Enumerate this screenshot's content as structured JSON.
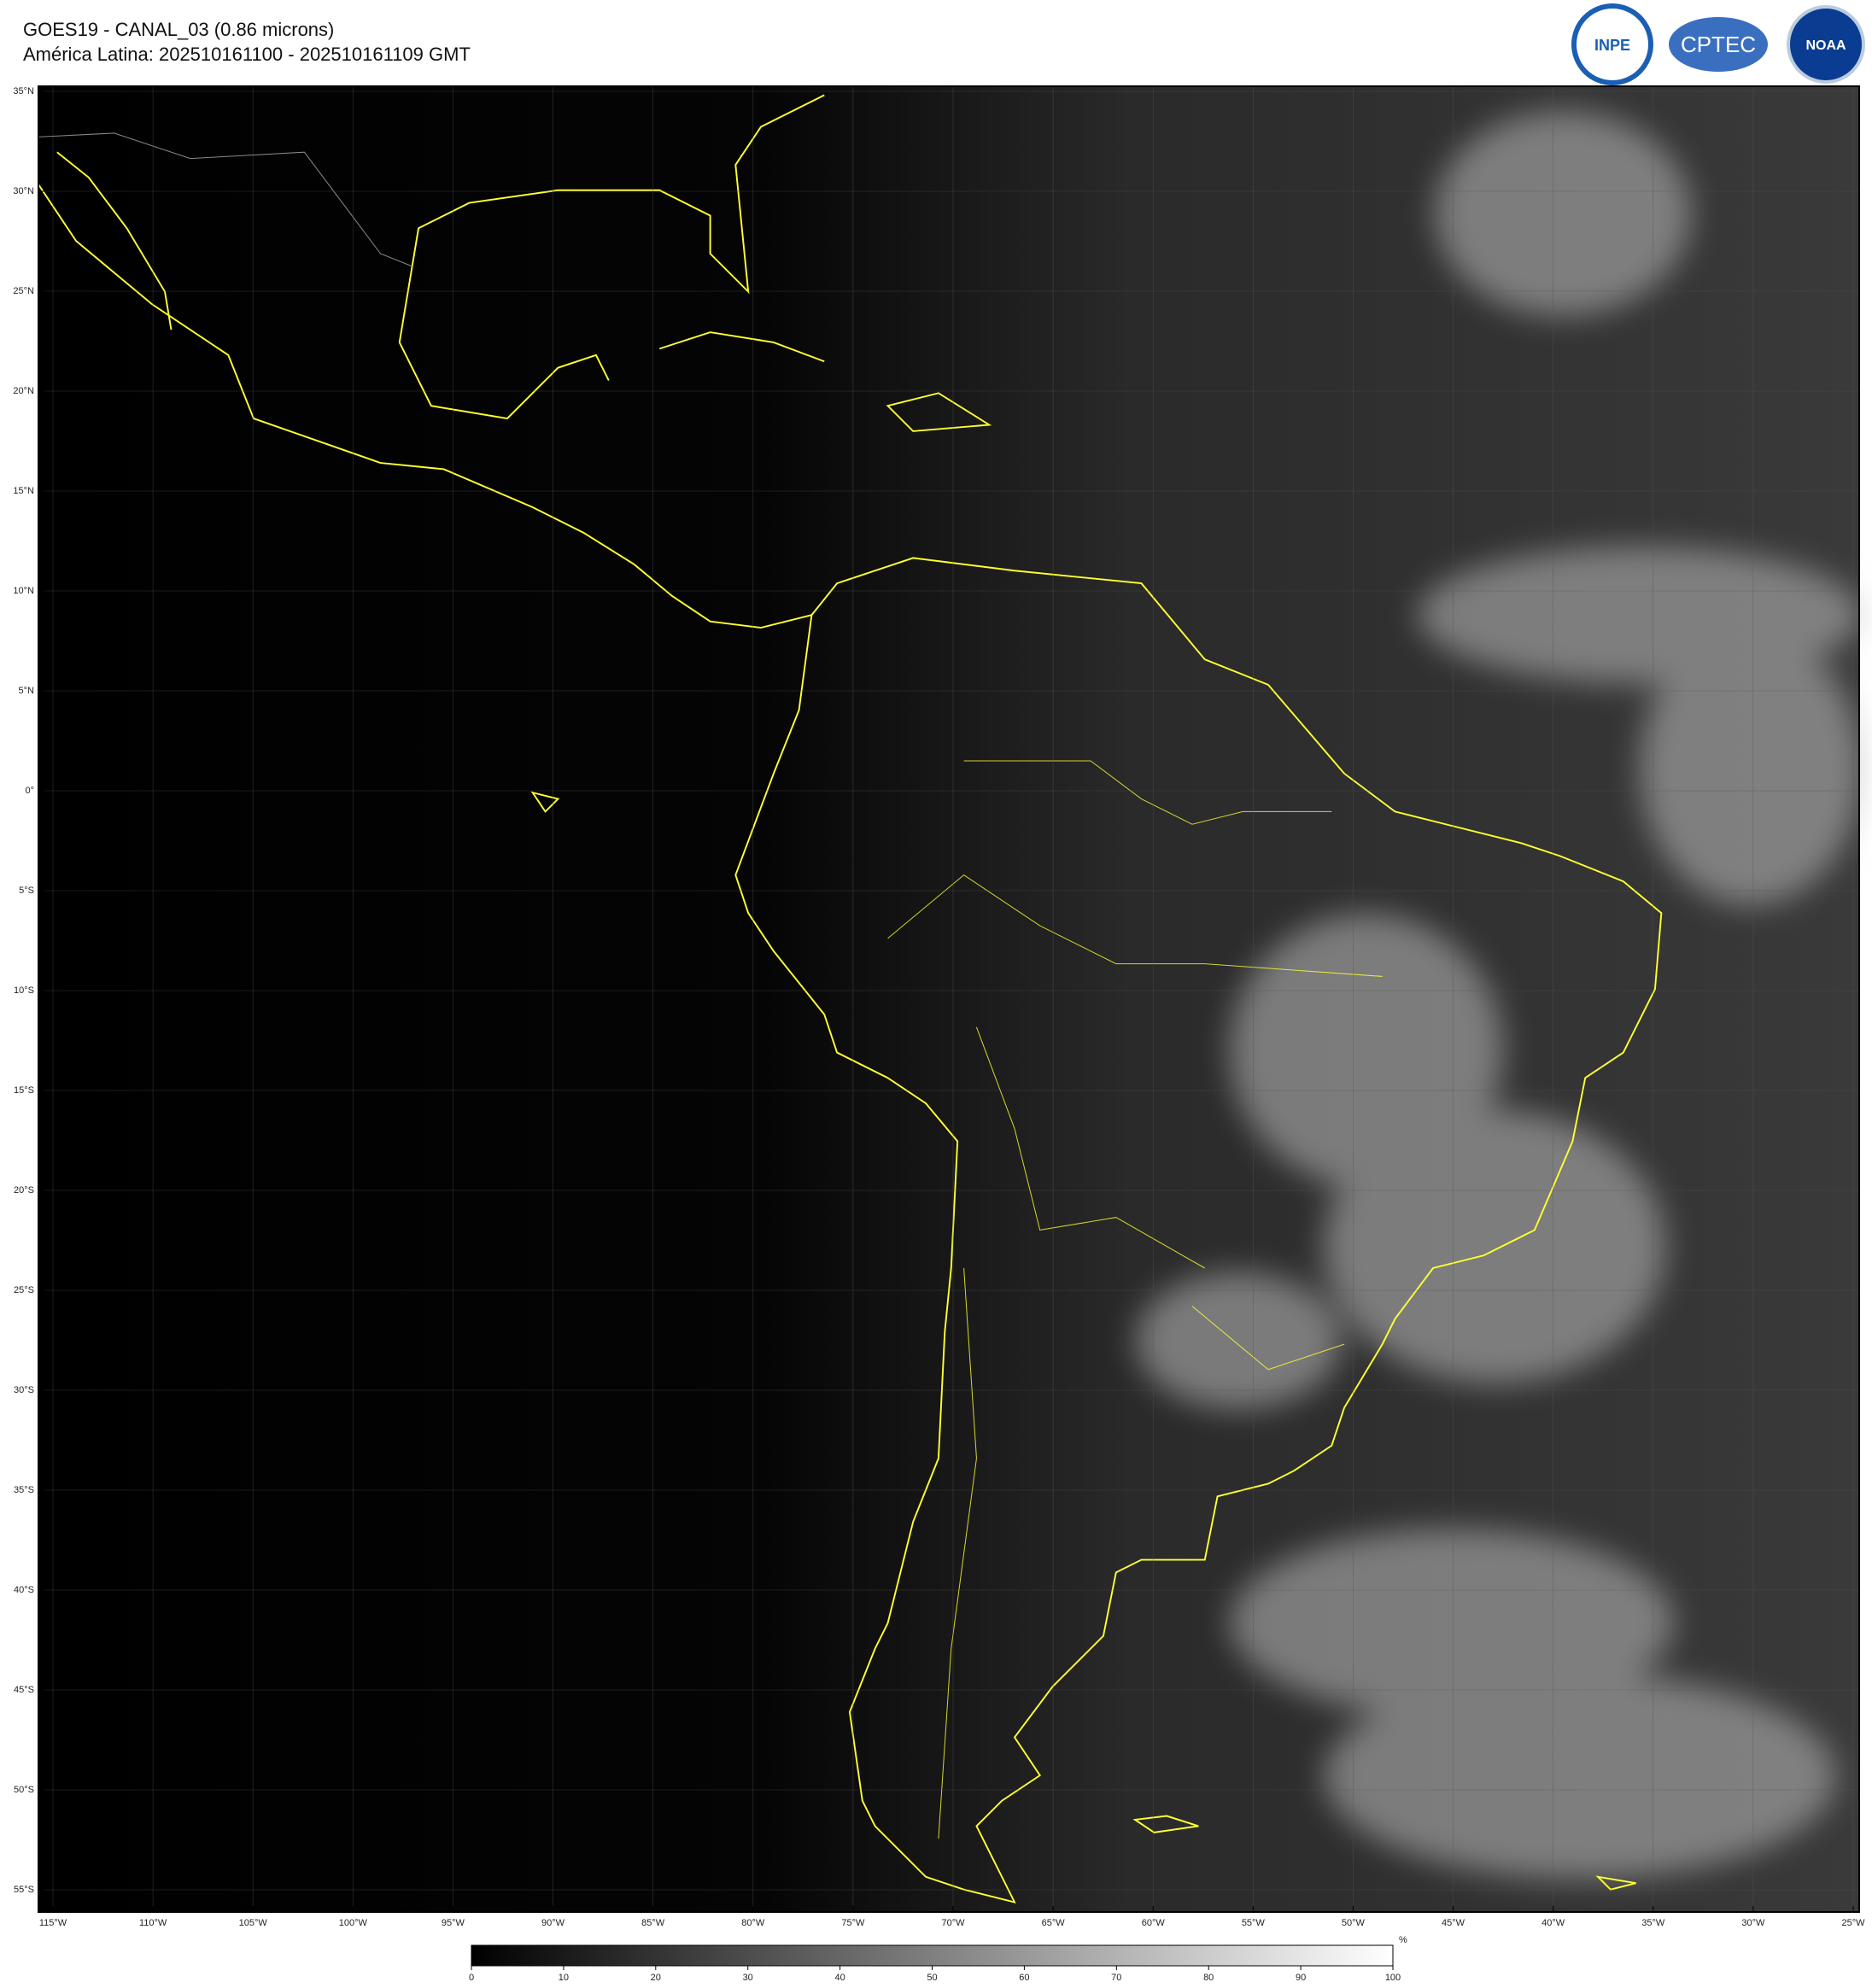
{
  "header": {
    "title": "GOES19 - CANAL_03 (0.86 microns)",
    "subtitle": "América Latina: 202510161100 - 202510161109 GMT"
  },
  "logos": [
    "INPE",
    "CPTEC",
    "NOAA"
  ],
  "map": {
    "lat_labels": [
      "35°N",
      "30°N",
      "25°N",
      "20°N",
      "15°N",
      "10°N",
      "5°N",
      "0°",
      "5°S",
      "10°S",
      "15°S",
      "20°S",
      "25°S",
      "30°S",
      "35°S",
      "40°S",
      "45°S",
      "50°S",
      "55°S"
    ],
    "lon_labels": [
      "115°W",
      "110°W",
      "105°W",
      "100°W",
      "95°W",
      "90°W",
      "85°W",
      "80°W",
      "75°W",
      "70°W",
      "65°W",
      "60°W",
      "55°W",
      "50°W",
      "45°W",
      "40°W",
      "35°W",
      "30°W",
      "25°W"
    ]
  },
  "colorbar": {
    "unit": "%",
    "ticks": [
      0,
      10,
      20,
      30,
      40,
      50,
      60,
      70,
      80,
      90,
      100
    ]
  }
}
